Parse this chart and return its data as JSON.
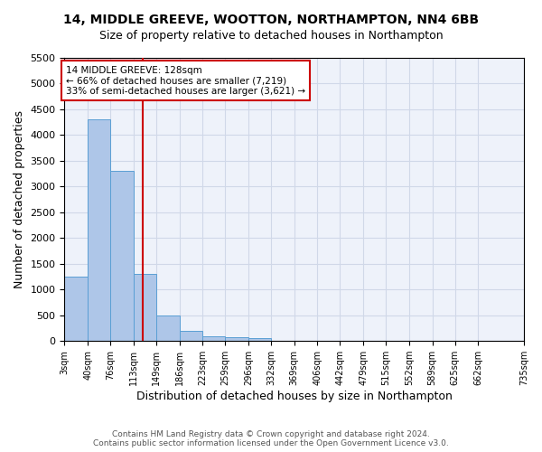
{
  "title_line1": "14, MIDDLE GREEVE, WOOTTON, NORTHAMPTON, NN4 6BB",
  "title_line2": "Size of property relative to detached houses in Northampton",
  "xlabel": "Distribution of detached houses by size in Northampton",
  "ylabel": "Number of detached properties",
  "annotation_line1": "14 MIDDLE GREEVE: 128sqm",
  "annotation_line2": "← 66% of detached houses are smaller (7,219)",
  "annotation_line3": "33% of semi-detached houses are larger (3,621) →",
  "footer_line1": "Contains HM Land Registry data © Crown copyright and database right 2024.",
  "footer_line2": "Contains public sector information licensed under the Open Government Licence v3.0.",
  "bar_values": [
    1250,
    4300,
    3300,
    1300,
    500,
    200,
    100,
    70,
    60,
    0,
    0,
    0,
    0,
    0,
    0,
    0,
    0,
    0,
    0
  ],
  "bin_edges": [
    3,
    40,
    76,
    113,
    149,
    186,
    223,
    259,
    296,
    332,
    369,
    406,
    442,
    479,
    515,
    552,
    589,
    625,
    662,
    735
  ],
  "tick_labels": [
    "3sqm",
    "40sqm",
    "76sqm",
    "113sqm",
    "149sqm",
    "186sqm",
    "223sqm",
    "259sqm",
    "296sqm",
    "332sqm",
    "369sqm",
    "406sqm",
    "442sqm",
    "479sqm",
    "515sqm",
    "552sqm",
    "589sqm",
    "625sqm",
    "662sqm",
    "735sqm"
  ],
  "property_size": 128,
  "bar_color": "#aec6e8",
  "bar_edge_color": "#5a9fd4",
  "red_line_color": "#cc0000",
  "annotation_box_edge_color": "#cc0000",
  "grid_color": "#d0d8e8",
  "background_color": "#eef2fa",
  "ylim": [
    0,
    5500
  ],
  "yticks": [
    0,
    500,
    1000,
    1500,
    2000,
    2500,
    3000,
    3500,
    4000,
    4500,
    5000,
    5500
  ]
}
